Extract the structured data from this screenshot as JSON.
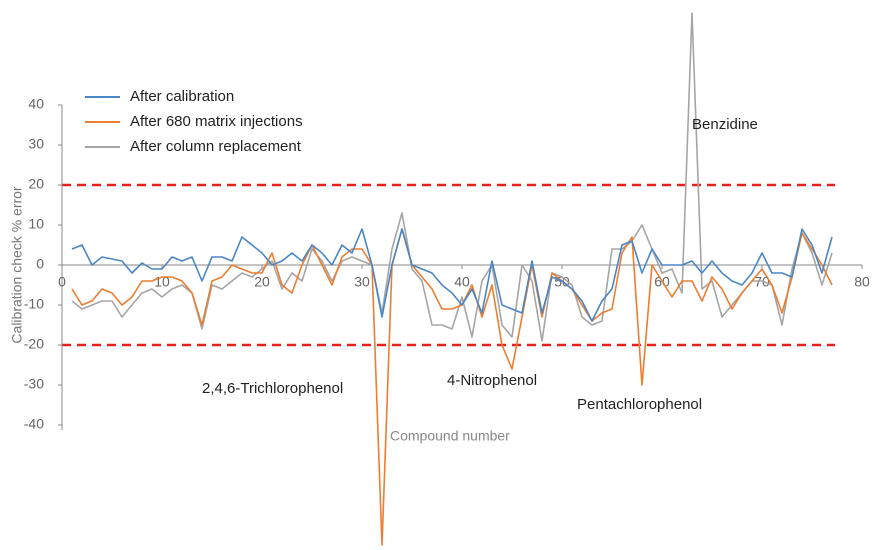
{
  "chart_data": {
    "type": "line",
    "y_axis_label": "Calibration check % error",
    "x_axis_label": "Compound number",
    "x": [
      1,
      2,
      3,
      4,
      5,
      6,
      7,
      8,
      9,
      10,
      11,
      12,
      13,
      14,
      15,
      16,
      17,
      18,
      19,
      20,
      21,
      22,
      23,
      24,
      25,
      26,
      27,
      28,
      29,
      30,
      31,
      32,
      33,
      34,
      35,
      36,
      37,
      38,
      39,
      40,
      41,
      42,
      43,
      44,
      45,
      46,
      47,
      48,
      49,
      50,
      51,
      52,
      53,
      54,
      55,
      56,
      57,
      58,
      59,
      60,
      61,
      62,
      63,
      64,
      65,
      66,
      67,
      68,
      69,
      70,
      71,
      72,
      73,
      74,
      75,
      76,
      77
    ],
    "series": [
      {
        "name": "After calibration",
        "color": "#4a86c5",
        "values": [
          4,
          5,
          0,
          2,
          1.5,
          1,
          -2,
          0.5,
          -1,
          -1,
          2,
          1,
          2,
          -4,
          2,
          2,
          1,
          7,
          5,
          3,
          0,
          1,
          3,
          1,
          5,
          3,
          0,
          5,
          3,
          9,
          0,
          -13,
          0,
          9,
          0,
          -1,
          -2,
          -5,
          -7,
          -10,
          -6,
          -12,
          1,
          -10,
          -11,
          -12,
          1,
          -12,
          -3,
          -4,
          -6,
          -9,
          -14,
          -9,
          -6,
          5,
          6,
          -2,
          4,
          0,
          0,
          0,
          1,
          -2,
          1,
          -2,
          -4,
          -5,
          -2,
          3,
          -2,
          -2,
          -3,
          9,
          5,
          -2,
          7
        ]
      },
      {
        "name": "After 680 matrix injections",
        "color": "#ed7d31",
        "values": [
          -6,
          -10,
          -9,
          -6,
          -7,
          -10,
          -8,
          -4,
          -4,
          -3,
          -3,
          -4,
          -7,
          -15,
          -4,
          -3,
          0,
          -1,
          -2,
          -2,
          3,
          -5,
          -7,
          0,
          5,
          0,
          -5,
          2,
          4,
          4,
          0,
          -70,
          0,
          9,
          0,
          -3,
          -6,
          -11,
          -11,
          -10,
          -5,
          -13,
          -5,
          -20,
          -26,
          -13,
          0,
          -13,
          -2,
          -4,
          -6,
          -10,
          -14,
          -12,
          -11,
          3,
          7,
          -30,
          0,
          -4,
          -8,
          -4,
          -4,
          -9,
          -3,
          -6,
          -11,
          -7,
          -4,
          -1,
          -5,
          -12,
          -3,
          8,
          4,
          0,
          -5
        ]
      },
      {
        "name": "After column replacement",
        "color": "#a5a5a5",
        "values": [
          -9,
          -11,
          -10,
          -9,
          -9,
          -13,
          -10,
          -7,
          -6,
          -8,
          -6,
          -5,
          -7,
          -16,
          -5,
          -6,
          -4,
          -2,
          -3,
          -1,
          1,
          -6,
          -2,
          -4,
          4,
          1,
          -4,
          1,
          2,
          1,
          0,
          -12,
          4,
          13,
          -1,
          -4,
          -15,
          -15,
          -16,
          -8,
          -18,
          -4,
          0,
          -15,
          -18,
          0,
          -4,
          -19,
          -2,
          -3,
          -5,
          -13,
          -15,
          -14,
          4,
          4,
          6,
          10,
          4,
          -2,
          -1,
          -7,
          63,
          -6,
          -4,
          -13,
          -10,
          -7,
          -4,
          -4,
          -5,
          -15,
          -1,
          8,
          3,
          -5,
          3
        ]
      }
    ],
    "xlim": [
      0,
      80
    ],
    "xticks": [
      0,
      10,
      20,
      30,
      40,
      50,
      60,
      70,
      80
    ],
    "ylim": [
      -40,
      40
    ],
    "yticks": [
      -40,
      -30,
      -20,
      -10,
      0,
      10,
      20,
      30,
      40
    ],
    "reference_lines": [
      20,
      -20
    ],
    "reference_color": "#e8201e",
    "annotations": [
      {
        "text": "Benzidine",
        "x": 63,
        "y": 35
      },
      {
        "text": "2,4,6-Trichlorophenol",
        "x": 14,
        "y": -31
      },
      {
        "text": "4-Nitrophenol",
        "x": 38.5,
        "y": -29
      },
      {
        "text": "Pentachlorophenol",
        "x": 51.5,
        "y": -35
      }
    ]
  }
}
